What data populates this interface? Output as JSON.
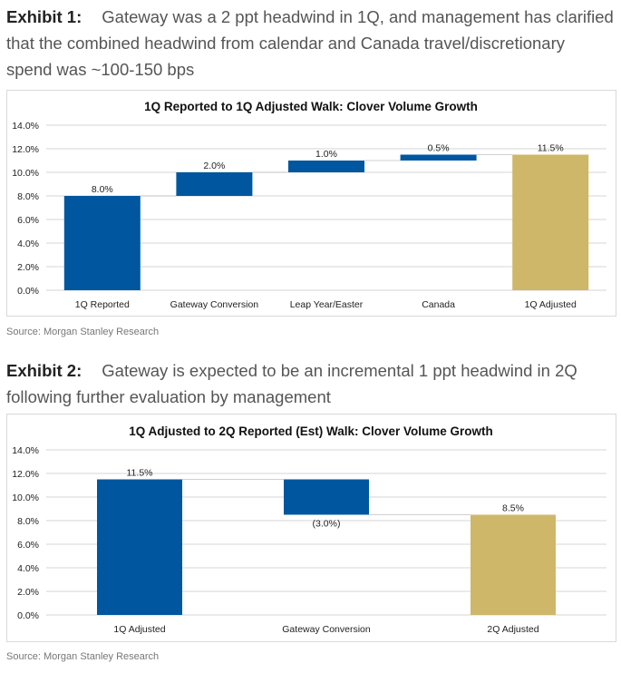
{
  "exhibit1": {
    "label": "Exhibit 1:",
    "caption": "Gateway was a 2 ppt headwind in 1Q, and management has clarified that the combined headwind from calendar and Canada travel/discretionary spend was ~100-150 bps",
    "source": "Source: Morgan Stanley Research"
  },
  "exhibit2": {
    "label": "Exhibit 2:",
    "caption": "Gateway is expected to be an incremental 1 ppt headwind in 2Q following further evaluation by management",
    "source": "Source: Morgan Stanley Research"
  },
  "colors": {
    "blue": "#0057a0",
    "gold": "#cfb76a",
    "grid": "#e3e3e3"
  },
  "chart_data": [
    {
      "type": "bar",
      "subtype": "waterfall",
      "title": "1Q Reported to 1Q Adjusted Walk: Clover Volume Growth",
      "categories": [
        "1Q Reported",
        "Gateway Conversion",
        "Leap Year/Easter",
        "Canada",
        "1Q Adjusted"
      ],
      "values": [
        8.0,
        2.0,
        1.0,
        0.5,
        11.5
      ],
      "kinds": [
        "total",
        "delta",
        "delta",
        "delta",
        "total"
      ],
      "data_labels": [
        "8.0%",
        "2.0%",
        "1.0%",
        "0.5%",
        "11.5%"
      ],
      "ylim": [
        0,
        14
      ],
      "yticks": [
        "0.0%",
        "2.0%",
        "4.0%",
        "6.0%",
        "8.0%",
        "10.0%",
        "12.0%",
        "14.0%"
      ],
      "grid": true,
      "xlabel": "",
      "ylabel": ""
    },
    {
      "type": "bar",
      "subtype": "waterfall",
      "title": "1Q Adjusted to 2Q Reported (Est) Walk: Clover Volume Growth",
      "categories": [
        "1Q Adjusted",
        "Gateway Conversion",
        "2Q Adjusted"
      ],
      "values": [
        11.5,
        -3.0,
        8.5
      ],
      "kinds": [
        "total",
        "delta",
        "total"
      ],
      "data_labels": [
        "11.5%",
        "(3.0%)",
        "8.5%"
      ],
      "ylim": [
        0,
        14
      ],
      "yticks": [
        "0.0%",
        "2.0%",
        "4.0%",
        "6.0%",
        "8.0%",
        "10.0%",
        "12.0%",
        "14.0%"
      ],
      "grid": true,
      "xlabel": "",
      "ylabel": ""
    }
  ]
}
